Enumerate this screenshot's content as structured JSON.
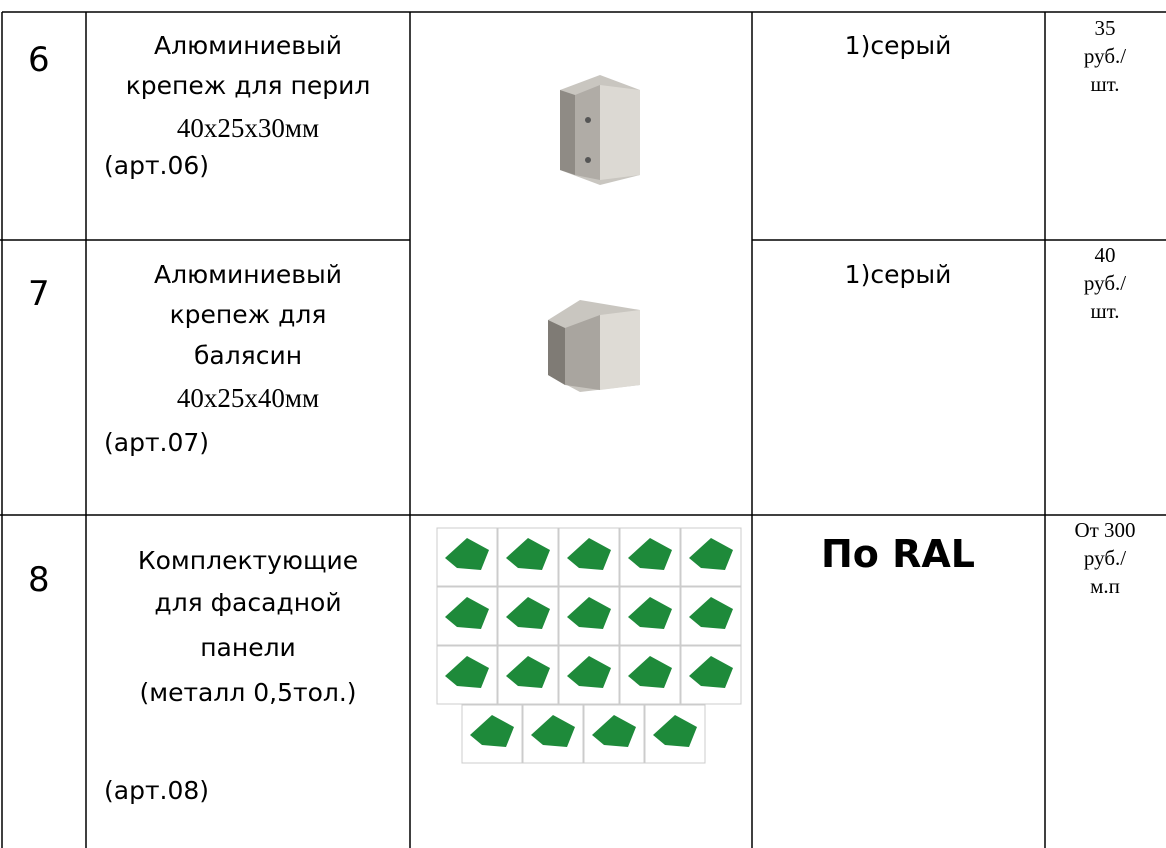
{
  "table": {
    "rows": [
      {
        "number": "6",
        "name": [
          "Алюминиевый",
          "крепеж для перил",
          "40х25х30мм",
          "(арт.06)"
        ],
        "color": "1)серый",
        "price": [
          "35",
          "руб./",
          "шт."
        ]
      },
      {
        "number": "7",
        "name": [
          "Алюминиевый",
          "крепеж для",
          "балясин",
          "40х25х40мм",
          "(арт.07)"
        ],
        "color": "1)серый",
        "price": [
          "40",
          "руб./",
          "шт."
        ]
      },
      {
        "number": "8",
        "name": [
          "Комплектующие",
          "для фасадной",
          "панели",
          "(металл 0,5тол.)",
          "(арт.08)"
        ],
        "color": "По RAL",
        "price": [
          "От 300",
          "руб./",
          "м.п"
        ]
      }
    ]
  }
}
